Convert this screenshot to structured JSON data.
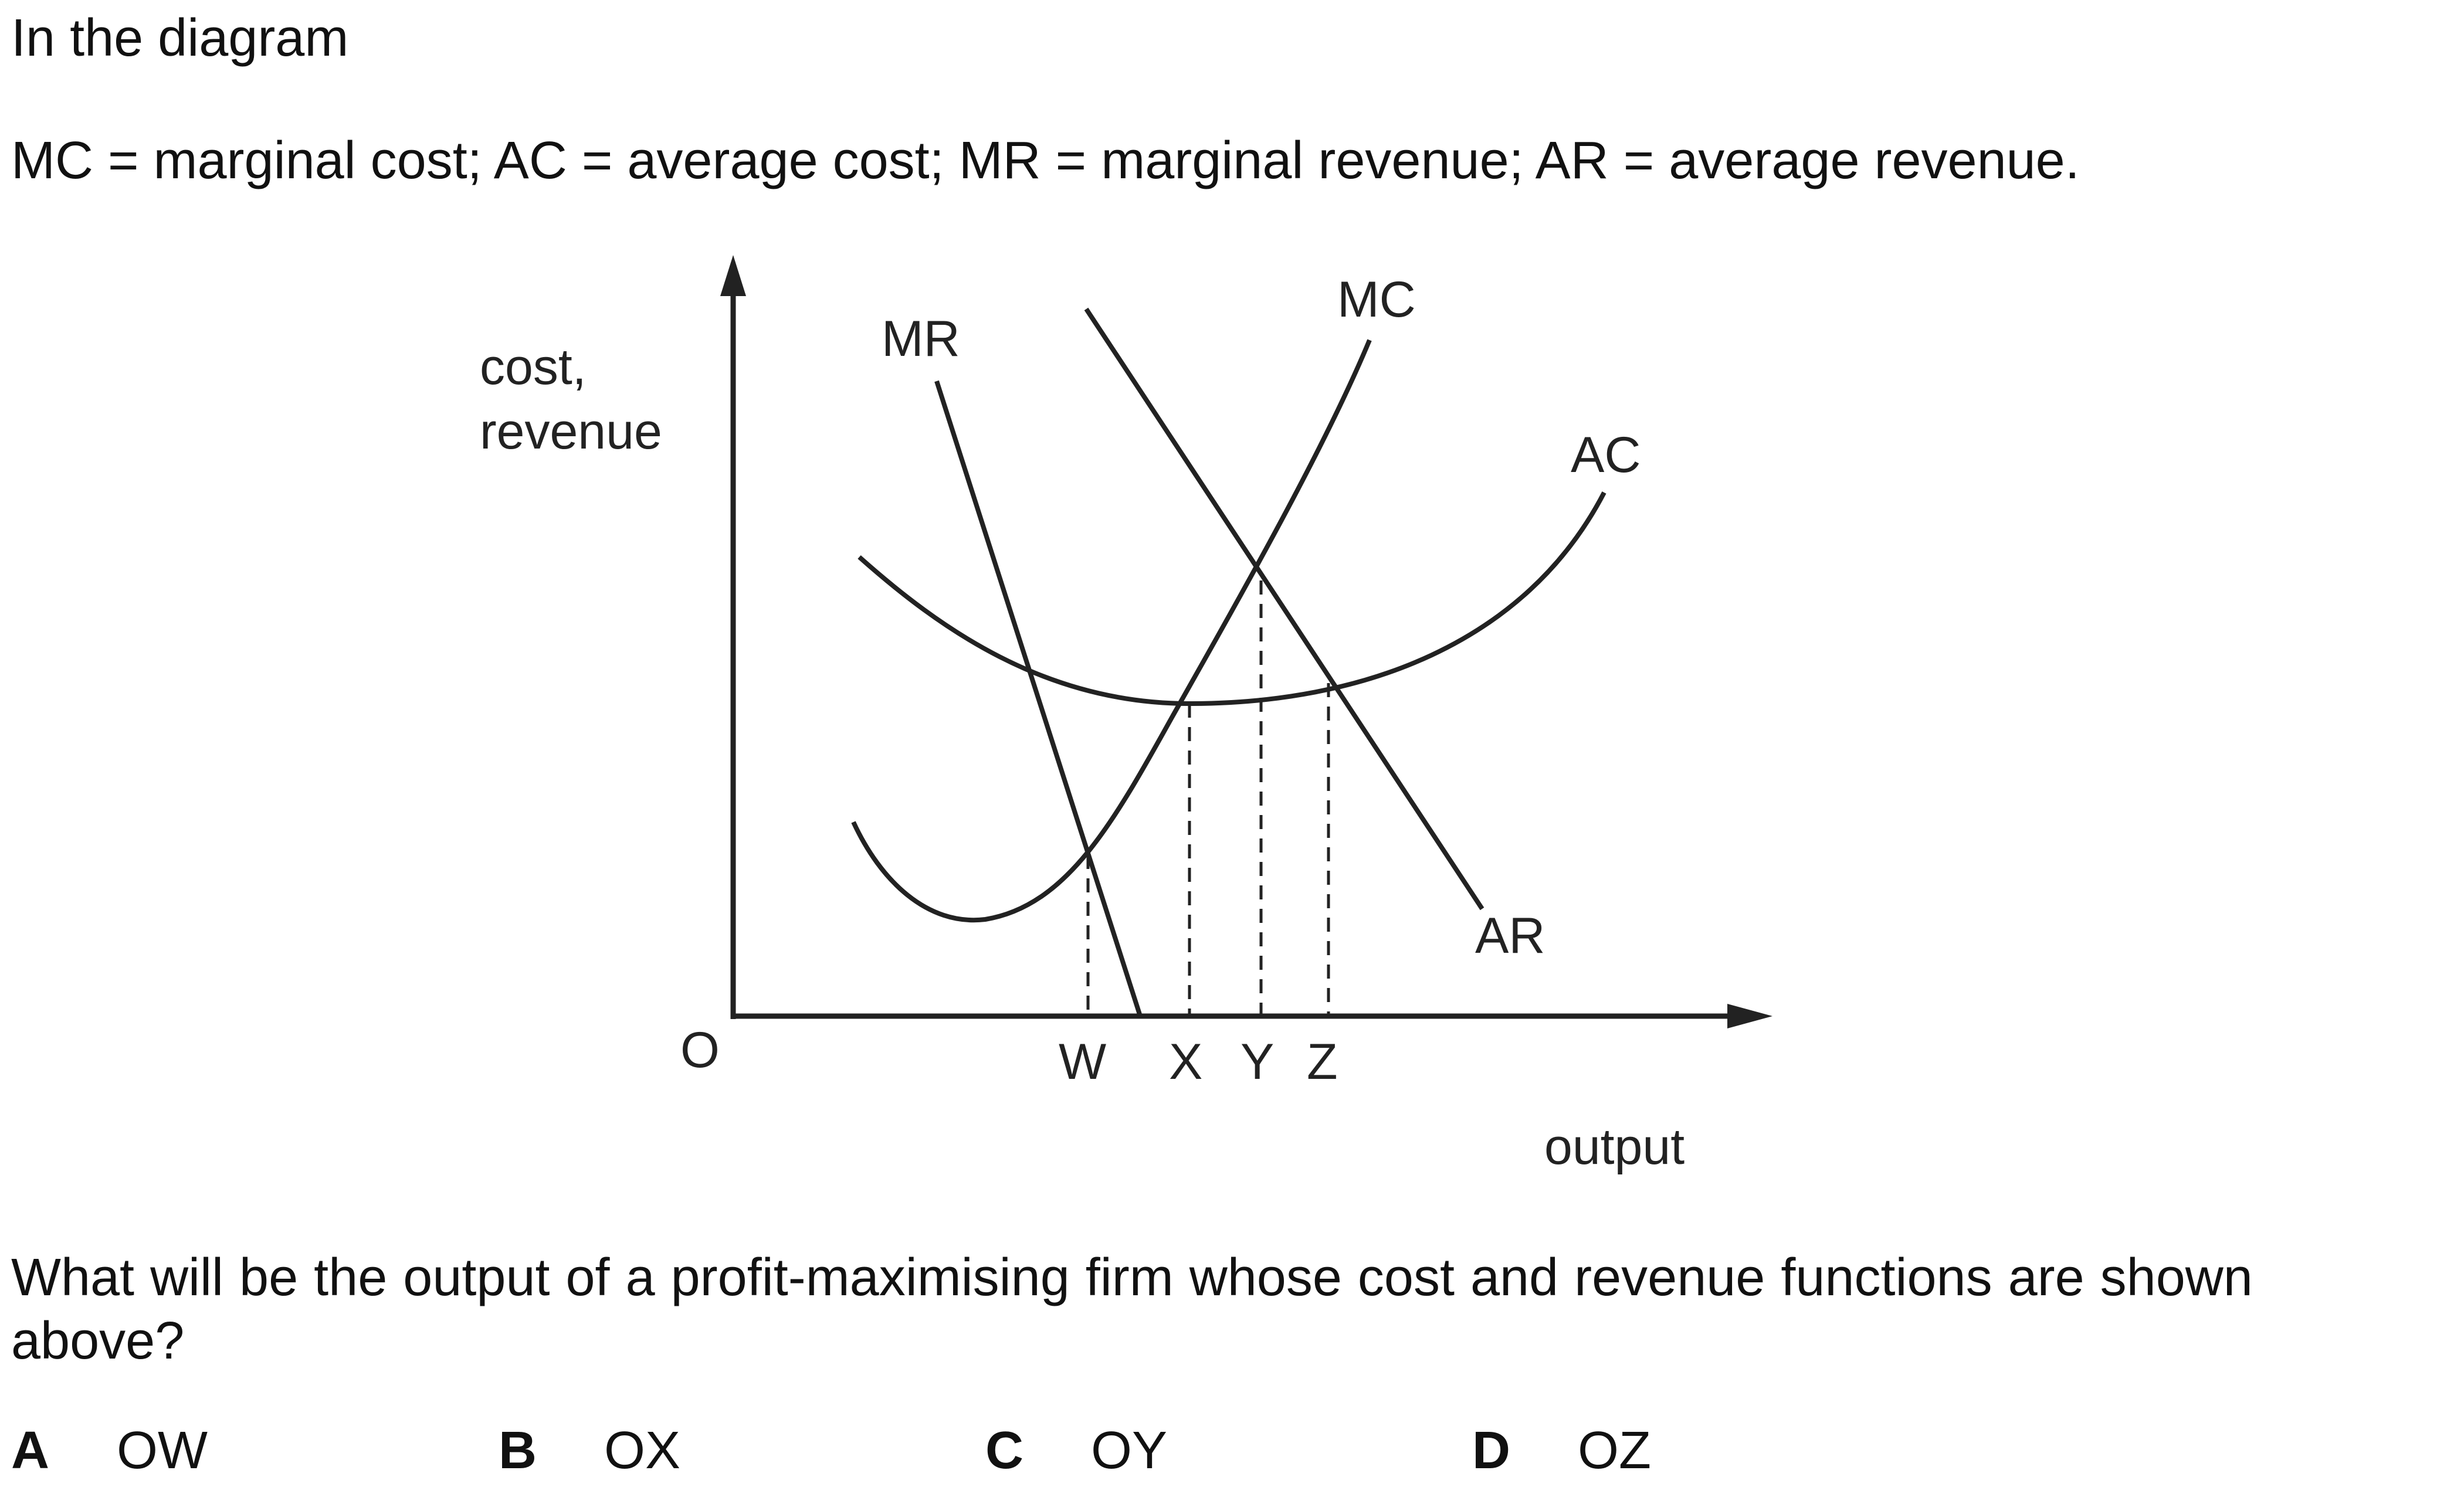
{
  "question": {
    "intro": "In the diagram",
    "definitions": "MC = marginal cost; AC = average cost; MR = marginal revenue; AR = average revenue.",
    "prompt": "What will be the output of a profit-maximising firm whose cost and revenue functions are shown above?"
  },
  "diagram": {
    "y_axis_label_line1": "cost,",
    "y_axis_label_line2": "revenue",
    "x_axis_label": "output",
    "origin_label": "O",
    "curves": {
      "mr": "MR",
      "mc": "MC",
      "ac": "AC",
      "ar": "AR"
    },
    "output_points": [
      "W",
      "X",
      "Y",
      "Z"
    ]
  },
  "options": [
    {
      "letter": "A",
      "text": "OW"
    },
    {
      "letter": "B",
      "text": "OX"
    },
    {
      "letter": "C",
      "text": "OY"
    },
    {
      "letter": "D",
      "text": "OZ"
    }
  ],
  "colors": {
    "ink": "#222222",
    "background": "#ffffff"
  }
}
